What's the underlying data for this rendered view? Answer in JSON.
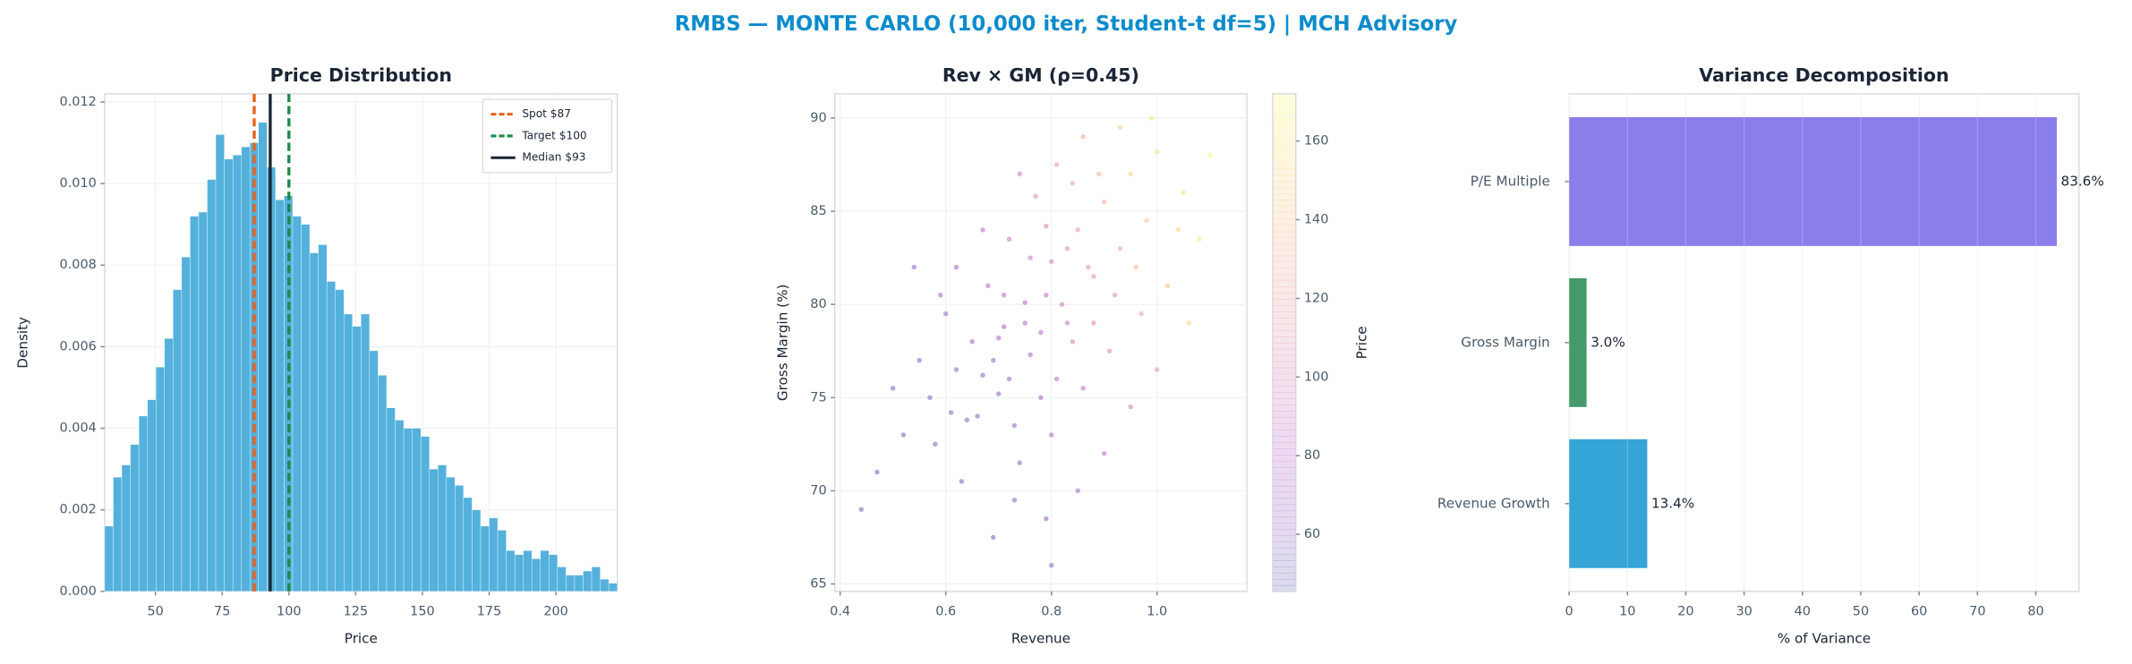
{
  "suptitle": "RMBS — MONTE CARLO (10,000 iter, Student-t df=5) | MCH Advisory",
  "chart_data": [
    {
      "type": "histogram",
      "title": "Price Distribution",
      "x_label": "Price",
      "y_label": "Density",
      "color": "#4badda",
      "grid": true,
      "bins": [
        31,
        34.2,
        37.4,
        40.6,
        43.8,
        47,
        50.2,
        53.4,
        56.6,
        59.8,
        63,
        66.2,
        69.4,
        72.6,
        75.8,
        79,
        82.2,
        85.4,
        88.6,
        91.8,
        95,
        98.2,
        101.4,
        104.6,
        107.8,
        111,
        114.2,
        117.4,
        120.6,
        123.8,
        127,
        130.2,
        133.4,
        136.6,
        139.8,
        143,
        146.2,
        149.4,
        152.6,
        155.8,
        159,
        162.2,
        165.4,
        168.6,
        171.8,
        175,
        178.2,
        181.4,
        184.6,
        187.8,
        191,
        194.2,
        197.4,
        200.6,
        203.8,
        207,
        210.2,
        213.4,
        216.6,
        219.8,
        223
      ],
      "values": [
        0.0016,
        0.0028,
        0.0031,
        0.0036,
        0.0043,
        0.0047,
        0.0055,
        0.0062,
        0.0074,
        0.0082,
        0.0092,
        0.0093,
        0.0101,
        0.0112,
        0.0106,
        0.0107,
        0.0109,
        0.011,
        0.0115,
        0.0104,
        0.0096,
        0.0097,
        0.0092,
        0.009,
        0.0083,
        0.0085,
        0.0076,
        0.0074,
        0.0068,
        0.0065,
        0.0068,
        0.0059,
        0.0053,
        0.0045,
        0.0042,
        0.004,
        0.004,
        0.0038,
        0.003,
        0.0031,
        0.0028,
        0.0026,
        0.0023,
        0.002,
        0.0016,
        0.0018,
        0.0015,
        0.001,
        0.0009,
        0.001,
        0.0008,
        0.001,
        0.0009,
        0.0006,
        0.0004,
        0.0004,
        0.0005,
        0.0006,
        0.0003,
        0.0002
      ],
      "xlim": [
        31,
        223
      ],
      "xticks": [
        50,
        75,
        100,
        125,
        150,
        175,
        200
      ],
      "ylim": [
        0,
        0.0122
      ],
      "yticks": [
        {
          "value": 0,
          "label": "0.000"
        },
        {
          "value": 0.002,
          "label": "0.002"
        },
        {
          "value": 0.004,
          "label": "0.004"
        },
        {
          "value": 0.006,
          "label": "0.006"
        },
        {
          "value": 0.008,
          "label": "0.008"
        },
        {
          "value": 0.01,
          "label": "0.010"
        },
        {
          "value": 0.012,
          "label": "0.012"
        }
      ],
      "vlines": [
        {
          "value": 87,
          "label": "Spot $87",
          "color": "#e8601c",
          "style": "dashed"
        },
        {
          "value": 100,
          "label": "Target $100",
          "color": "#1a8a4a",
          "style": "dashed"
        },
        {
          "value": 93,
          "label": "Median $93",
          "color": "#1a2535",
          "style": "solid"
        }
      ],
      "legend": "upper right"
    },
    {
      "type": "scatter",
      "title": "Rev × GM (ρ=0.45)",
      "x_label": "Revenue",
      "y_label": "Gross Margin (%)",
      "colorbar_label": "Price",
      "cmap": "plasma",
      "grid": true,
      "x": [
        0.62,
        0.7,
        0.75,
        0.8,
        0.85,
        0.9,
        0.95,
        1,
        0.66,
        0.72,
        0.78,
        0.82,
        0.88,
        0.93,
        0.98,
        1.05,
        0.58,
        0.64,
        0.7,
        0.76,
        0.83,
        0.87,
        0.92,
        0.68,
        0.72,
        0.77,
        0.81,
        0.6,
        0.55,
        0.5,
        0.47,
        0.52,
        0.63,
        0.74,
        0.8,
        0.86,
        0.91,
        0.97,
        1.02,
        1.08,
        0.79,
        0.73,
        0.69,
        0.85,
        0.95,
        1,
        0.67,
        0.62,
        0.74,
        0.86,
        0.93,
        0.99,
        0.89,
        0.84,
        0.79,
        0.71,
        0.65,
        0.57,
        0.61,
        0.76,
        0.81,
        0.84,
        0.88,
        0.78,
        0.73,
        0.69,
        0.83,
        0.96,
        1.04,
        1.1,
        0.75,
        0.79,
        0.71,
        0.67,
        0.59,
        0.54,
        0.44,
        0.8,
        0.9,
        1.06
      ],
      "y": [
        76.5,
        78.2,
        80.1,
        82.3,
        84,
        85.5,
        87,
        88.2,
        74,
        76,
        78.5,
        80,
        81.5,
        83,
        84.5,
        86,
        72.5,
        73.8,
        75.2,
        77.3,
        79,
        82,
        80.5,
        81,
        83.5,
        85.8,
        87.5,
        79.5,
        77,
        75.5,
        71,
        73,
        70.5,
        71.5,
        73,
        75.5,
        77.5,
        79.5,
        81,
        83.5,
        68.5,
        69.5,
        67.5,
        70,
        74.5,
        76.5,
        84,
        82,
        87,
        89,
        89.5,
        90,
        87,
        86.5,
        84.2,
        80.5,
        78,
        75,
        74.2,
        82.5,
        76,
        78,
        79,
        75,
        73.5,
        77,
        83,
        82,
        84,
        88,
        79,
        80.5,
        78.8,
        76.2,
        80.5,
        82,
        69,
        66,
        72,
        79
      ],
      "c": [
        62,
        70,
        82,
        98,
        115,
        130,
        148,
        160,
        58,
        66,
        80,
        92,
        108,
        124,
        140,
        158,
        50,
        55,
        62,
        74,
        90,
        112,
        110,
        78,
        90,
        104,
        118,
        64,
        54,
        49,
        47,
        50,
        52,
        60,
        72,
        88,
        104,
        124,
        142,
        165,
        62,
        56,
        50,
        72,
        100,
        116,
        82,
        70,
        96,
        128,
        146,
        162,
        132,
        120,
        102,
        76,
        64,
        53,
        56,
        92,
        84,
        96,
        104,
        74,
        64,
        66,
        106,
        134,
        152,
        170,
        78,
        88,
        72,
        62,
        66,
        62,
        46,
        60,
        84,
        148
      ],
      "xlim": [
        0.39,
        1.17
      ],
      "xticks": [
        0.4,
        0.6,
        0.8,
        {
          "value": 1,
          "label": "1.0"
        }
      ],
      "ylim": [
        64.6,
        91.3
      ],
      "yticks": [
        65,
        70,
        75,
        80,
        85,
        90
      ],
      "clim": [
        45.5,
        172
      ],
      "cticks": [
        60,
        80,
        100,
        120,
        140,
        160
      ]
    },
    {
      "type": "barh",
      "title": "Variance Decomposition",
      "x_label": "% of Variance",
      "grid": true,
      "categories": [
        "Revenue Growth",
        "Gross Margin",
        "P/E Multiple"
      ],
      "values": [
        13.4,
        3.0,
        83.6
      ],
      "value_labels": [
        "13.4%",
        "3.0%",
        "83.6%"
      ],
      "colors": [
        "#35a4d6",
        "#45996a",
        "#8a7eea"
      ],
      "xlim": [
        0,
        87.4
      ],
      "xticks": [
        0,
        10,
        20,
        30,
        40,
        50,
        60,
        70,
        80
      ]
    }
  ]
}
